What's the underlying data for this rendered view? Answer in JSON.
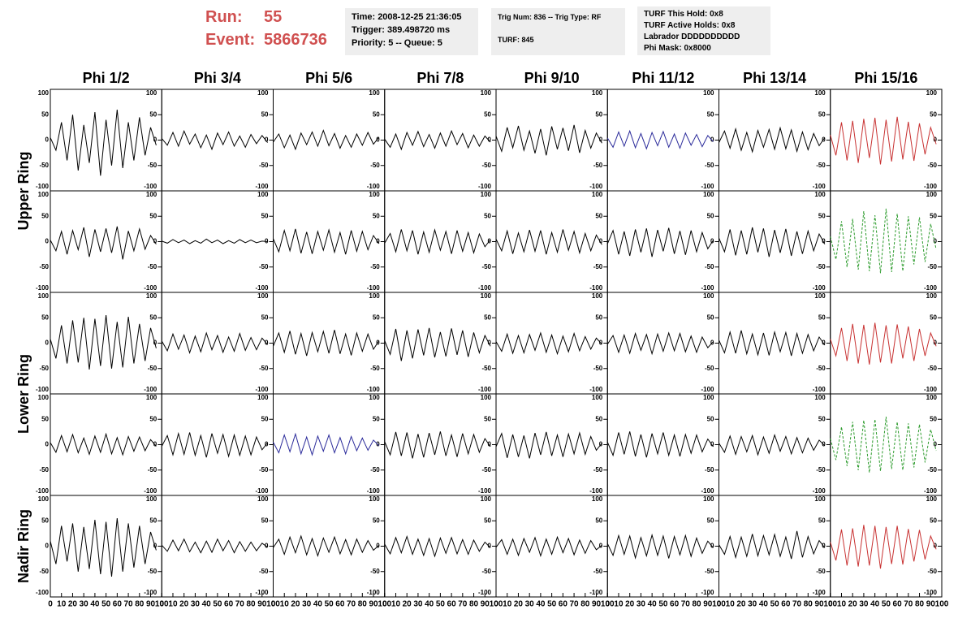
{
  "header": {
    "run_label": "Run:",
    "run": "55",
    "event_label": "Event:",
    "event": "5866736",
    "info": [
      [
        "Time: 2008-12-25 21:36:05",
        "Trigger: 389.498720 ms",
        "Priority: 5 -- Queue: 5"
      ],
      [
        "Trig Num: 836 -- Trig Type: RF",
        "TURF: 845"
      ],
      [
        "TURF This Hold: 0x8",
        "TURF Active Holds: 0x8",
        "Labrador DDDDDDDDDD",
        "Phi Mask: 0x8000"
      ]
    ]
  },
  "chart_data": {
    "type": "line",
    "columns": [
      "Phi 1/2",
      "Phi 3/4",
      "Phi 5/6",
      "Phi 7/8",
      "Phi 9/10",
      "Phi 11/12",
      "Phi 13/14",
      "Phi 15/16"
    ],
    "rows": [
      "Upper Ring",
      "Lower Ring",
      "Nadir Ring"
    ],
    "x": [
      0,
      5,
      10,
      15,
      20,
      25,
      30,
      35,
      40,
      45,
      50,
      55,
      60,
      65,
      70,
      75,
      80,
      85,
      90,
      95
    ],
    "xlim": [
      0,
      100
    ],
    "xticks": [
      0,
      10,
      20,
      30,
      40,
      50,
      60,
      70,
      80,
      90,
      100
    ],
    "ylim": [
      -100,
      100
    ],
    "yticks": [
      -100,
      -50,
      0,
      50,
      100
    ],
    "panels": [
      [
        {
          "color": "#000000",
          "values": [
            5,
            -20,
            35,
            -40,
            50,
            -60,
            30,
            -45,
            55,
            -70,
            40,
            -50,
            60,
            -55,
            35,
            -40,
            45,
            -30,
            25,
            -10
          ]
        },
        {
          "color": "#000000",
          "values": [
            3,
            -10,
            15,
            -12,
            18,
            -8,
            12,
            -15,
            10,
            -18,
            14,
            -9,
            16,
            -12,
            8,
            -14,
            11,
            -7,
            9,
            -5
          ]
        },
        {
          "color": "#000000",
          "values": [
            -4,
            12,
            -15,
            10,
            -18,
            14,
            -9,
            16,
            -12,
            19,
            -11,
            13,
            -16,
            9,
            -14,
            12,
            -10,
            15,
            -8,
            6
          ]
        },
        {
          "color": "#000000",
          "values": [
            2,
            -14,
            12,
            -18,
            15,
            -10,
            17,
            -13,
            11,
            -16,
            14,
            -12,
            18,
            -9,
            13,
            -15,
            10,
            -12,
            8,
            -4
          ]
        },
        {
          "color": "#000000",
          "values": [
            8,
            -22,
            25,
            -15,
            28,
            -20,
            18,
            -26,
            22,
            -30,
            27,
            -18,
            24,
            -21,
            30,
            -25,
            19,
            -16,
            14,
            -6
          ]
        },
        {
          "color": "#2a2a9a",
          "values": [
            4,
            -14,
            16,
            -12,
            18,
            -15,
            13,
            -17,
            15,
            -11,
            17,
            -14,
            12,
            -16,
            14,
            -10,
            11,
            -13,
            9,
            -3
          ]
        },
        {
          "color": "#000000",
          "values": [
            -5,
            18,
            -16,
            22,
            -20,
            15,
            -23,
            19,
            -14,
            21,
            -18,
            24,
            -17,
            20,
            -22,
            16,
            -19,
            13,
            -11,
            5
          ]
        },
        {
          "color": "#c83232",
          "values": [
            10,
            -30,
            35,
            -40,
            38,
            -45,
            42,
            -35,
            44,
            -48,
            40,
            -42,
            46,
            -38,
            36,
            -41,
            33,
            -28,
            25,
            -8
          ]
        }
      ],
      [
        {
          "color": "#000000",
          "values": [
            3,
            -18,
            20,
            -25,
            22,
            -16,
            28,
            -30,
            24,
            -20,
            26,
            -22,
            30,
            -35,
            21,
            -18,
            25,
            -15,
            12,
            -5
          ]
        },
        {
          "color": "#000000",
          "values": [
            1,
            -3,
            4,
            -2,
            3,
            -4,
            2,
            -3,
            5,
            -2,
            3,
            -4,
            2,
            -3,
            4,
            -2,
            3,
            -2,
            1,
            0
          ]
        },
        {
          "color": "#000000",
          "values": [
            6,
            -20,
            22,
            -18,
            25,
            -23,
            19,
            -24,
            20,
            -17,
            23,
            -21,
            18,
            -25,
            22,
            -19,
            20,
            -16,
            12,
            -4
          ]
        },
        {
          "color": "#000000",
          "values": [
            -3,
            16,
            -20,
            24,
            -18,
            22,
            -25,
            19,
            -21,
            23,
            -17,
            20,
            -24,
            22,
            -19,
            18,
            -22,
            15,
            -10,
            4
          ]
        },
        {
          "color": "#000000",
          "values": [
            5,
            -18,
            21,
            -24,
            17,
            -20,
            23,
            -19,
            22,
            -25,
            18,
            -21,
            24,
            -17,
            20,
            -22,
            16,
            -18,
            13,
            -6
          ]
        },
        {
          "color": "#000000",
          "values": [
            -4,
            22,
            -25,
            20,
            -28,
            24,
            -21,
            26,
            -30,
            23,
            -19,
            27,
            -24,
            21,
            -26,
            22,
            -20,
            18,
            -14,
            3
          ]
        },
        {
          "color": "#000000",
          "values": [
            7,
            -20,
            24,
            -27,
            22,
            -25,
            28,
            -21,
            26,
            -30,
            23,
            -22,
            25,
            -28,
            20,
            -24,
            21,
            -18,
            15,
            -5
          ]
        },
        {
          "color": "#2a9a2a",
          "dash": true,
          "values": [
            10,
            -35,
            40,
            -50,
            45,
            -55,
            60,
            -58,
            52,
            -62,
            65,
            -60,
            55,
            -58,
            50,
            -45,
            48,
            -40,
            35,
            -15
          ]
        }
      ],
      [
        {
          "color": "#000000",
          "values": [
            8,
            -30,
            35,
            -40,
            45,
            -38,
            50,
            -52,
            48,
            -45,
            55,
            -50,
            42,
            -48,
            52,
            -40,
            38,
            -35,
            30,
            -10
          ]
        },
        {
          "color": "#000000",
          "values": [
            4,
            -15,
            18,
            -12,
            16,
            -19,
            14,
            -17,
            20,
            -13,
            15,
            -18,
            12,
            -16,
            19,
            -14,
            11,
            -13,
            10,
            -3
          ]
        },
        {
          "color": "#000000",
          "values": [
            -6,
            20,
            -18,
            24,
            -22,
            19,
            -25,
            21,
            -17,
            23,
            -20,
            26,
            -21,
            18,
            -24,
            20,
            -16,
            18,
            -12,
            5
          ]
        },
        {
          "color": "#000000",
          "values": [
            5,
            -22,
            28,
            -35,
            25,
            -30,
            27,
            -24,
            30,
            -28,
            22,
            -26,
            29,
            -23,
            25,
            -27,
            21,
            -19,
            15,
            -6
          ]
        },
        {
          "color": "#000000",
          "values": [
            3,
            -16,
            18,
            -20,
            15,
            -19,
            17,
            -14,
            20,
            -18,
            16,
            -21,
            14,
            -17,
            19,
            -15,
            13,
            -12,
            10,
            -2
          ]
        },
        {
          "color": "#000000",
          "values": [
            -2,
            15,
            -18,
            16,
            -20,
            19,
            -14,
            17,
            -21,
            18,
            -16,
            20,
            -15,
            19,
            -17,
            14,
            -18,
            12,
            -9,
            3
          ]
        },
        {
          "color": "#000000",
          "values": [
            6,
            -19,
            22,
            -20,
            25,
            -21,
            18,
            -23,
            20,
            -24,
            22,
            -17,
            21,
            -25,
            19,
            -20,
            17,
            -15,
            12,
            -4
          ]
        },
        {
          "color": "#c83232",
          "values": [
            8,
            -25,
            30,
            -35,
            38,
            -40,
            36,
            -42,
            40,
            -38,
            35,
            -40,
            37,
            -30,
            33,
            -35,
            28,
            -25,
            20,
            -6
          ]
        }
      ],
      [
        {
          "color": "#000000",
          "values": [
            4,
            -15,
            18,
            -14,
            20,
            -16,
            13,
            -19,
            17,
            -15,
            21,
            -18,
            14,
            -20,
            16,
            -13,
            15,
            -12,
            10,
            -3
          ]
        },
        {
          "color": "#000000",
          "values": [
            -3,
            18,
            -20,
            22,
            -19,
            24,
            -21,
            18,
            -25,
            22,
            -17,
            20,
            -23,
            19,
            -21,
            17,
            -20,
            15,
            -10,
            4
          ]
        },
        {
          "color": "#2a2a9a",
          "values": [
            5,
            -16,
            19,
            -14,
            21,
            -18,
            15,
            -20,
            17,
            -13,
            19,
            -16,
            14,
            -18,
            16,
            -12,
            13,
            -11,
            9,
            -2
          ]
        },
        {
          "color": "#000000",
          "values": [
            6,
            -20,
            25,
            -22,
            24,
            -27,
            21,
            -25,
            23,
            -20,
            26,
            -22,
            19,
            -24,
            22,
            -18,
            20,
            -15,
            12,
            -4
          ]
        },
        {
          "color": "#000000",
          "values": [
            -4,
            22,
            -26,
            20,
            -24,
            18,
            -27,
            23,
            -20,
            25,
            -22,
            19,
            -24,
            21,
            -18,
            23,
            -19,
            16,
            -11,
            3
          ]
        },
        {
          "color": "#000000",
          "values": [
            5,
            -21,
            24,
            -19,
            26,
            -23,
            20,
            -25,
            22,
            -18,
            24,
            -21,
            19,
            -23,
            20,
            -17,
            19,
            -14,
            11,
            -4
          ]
        },
        {
          "color": "#000000",
          "values": [
            3,
            -15,
            17,
            -19,
            16,
            -14,
            18,
            -20,
            15,
            -17,
            19,
            -13,
            16,
            -18,
            14,
            -16,
            13,
            -11,
            9,
            -2
          ]
        },
        {
          "color": "#2a9a2a",
          "dash": true,
          "values": [
            12,
            -30,
            35,
            -42,
            45,
            -50,
            48,
            -55,
            50,
            -52,
            55,
            -48,
            45,
            -50,
            42,
            -45,
            40,
            -35,
            30,
            -12
          ]
        }
      ],
      [
        {
          "color": "#000000",
          "values": [
            10,
            -35,
            40,
            -30,
            45,
            -50,
            38,
            -45,
            52,
            -55,
            48,
            -60,
            55,
            -50,
            45,
            -42,
            40,
            -35,
            28,
            -8
          ]
        },
        {
          "color": "#000000",
          "values": [
            2,
            -10,
            12,
            -9,
            14,
            -11,
            8,
            -13,
            10,
            -12,
            14,
            -9,
            11,
            -13,
            9,
            -10,
            8,
            -9,
            6,
            -2
          ]
        },
        {
          "color": "#000000",
          "values": [
            -3,
            14,
            -16,
            18,
            -13,
            20,
            -17,
            15,
            -19,
            16,
            -12,
            18,
            -15,
            13,
            -17,
            14,
            -12,
            11,
            -8,
            2
          ]
        },
        {
          "color": "#000000",
          "values": [
            4,
            -15,
            17,
            -13,
            19,
            -16,
            14,
            -18,
            15,
            -20,
            16,
            -14,
            17,
            -15,
            13,
            -16,
            12,
            -10,
            8,
            -3
          ]
        },
        {
          "color": "#000000",
          "values": [
            -2,
            13,
            -16,
            14,
            -18,
            15,
            -12,
            17,
            -19,
            14,
            -16,
            18,
            -13,
            15,
            -17,
            12,
            -14,
            11,
            -7,
            2
          ]
        },
        {
          "color": "#000000",
          "values": [
            5,
            -18,
            21,
            -16,
            20,
            -23,
            17,
            -19,
            22,
            -18,
            20,
            -24,
            19,
            -17,
            21,
            -20,
            16,
            -14,
            10,
            -3
          ]
        },
        {
          "color": "#000000",
          "values": [
            3,
            -16,
            19,
            -22,
            18,
            -20,
            24,
            -19,
            21,
            -17,
            23,
            -20,
            18,
            -25,
            30,
            -22,
            19,
            -15,
            11,
            -3
          ]
        },
        {
          "color": "#c83232",
          "values": [
            8,
            -28,
            33,
            -38,
            35,
            -40,
            42,
            -38,
            40,
            -44,
            38,
            -35,
            40,
            -36,
            34,
            -30,
            32,
            -26,
            20,
            -6
          ]
        }
      ]
    ]
  }
}
